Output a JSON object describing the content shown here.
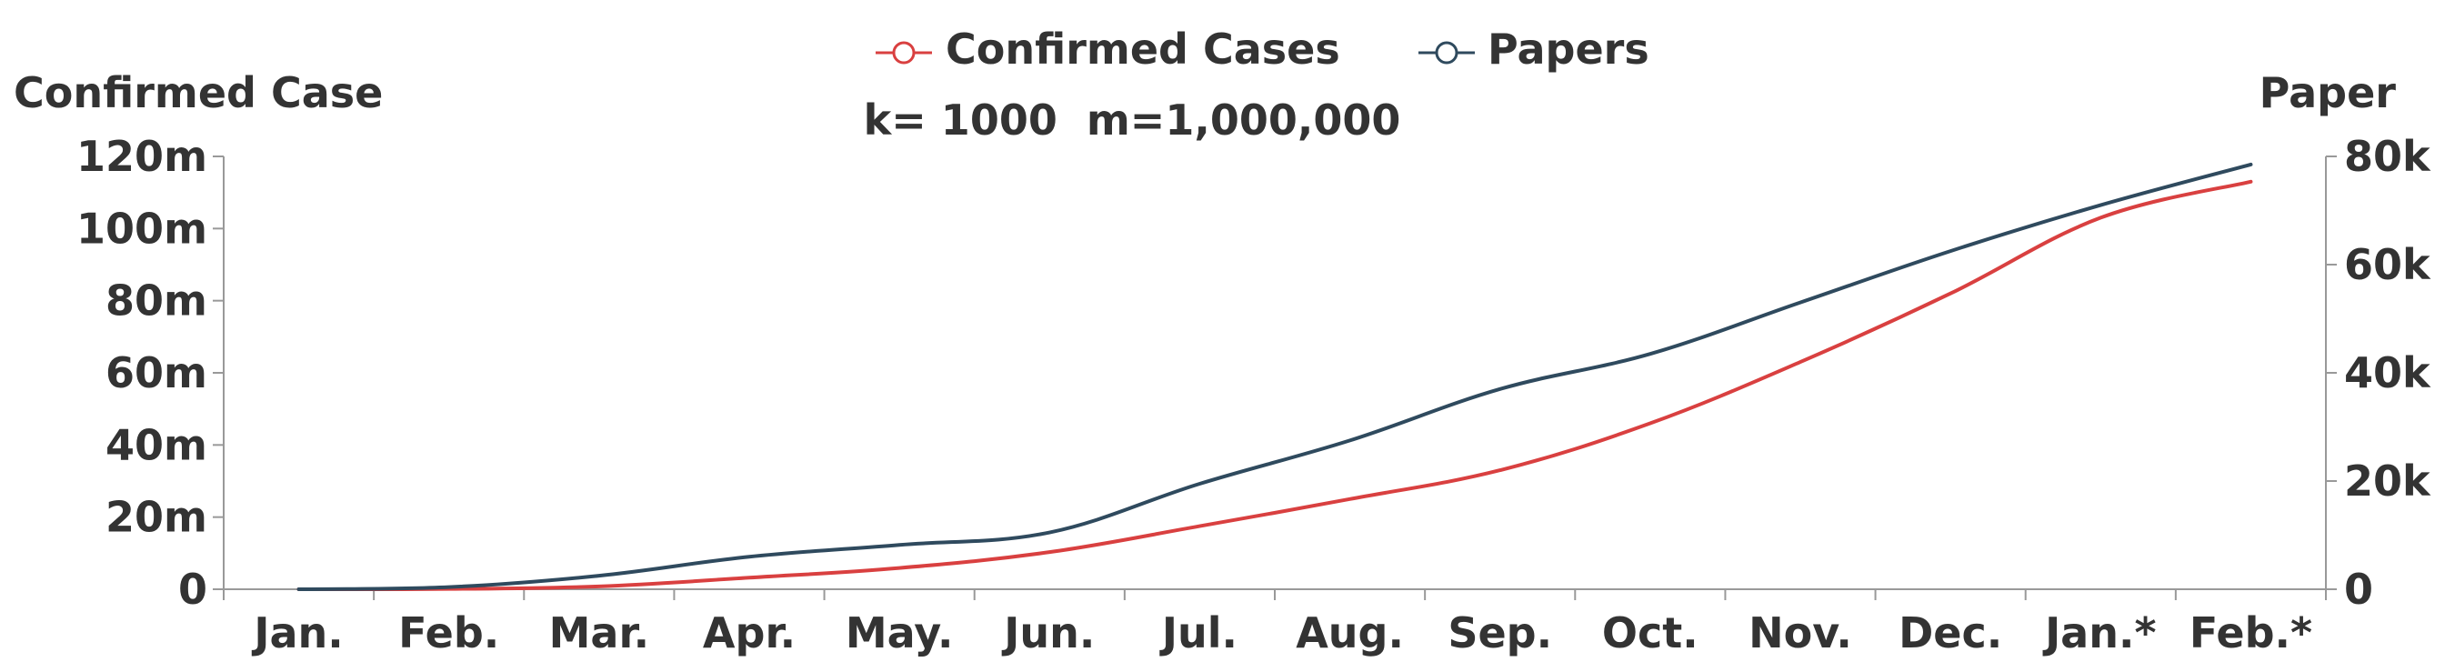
{
  "chart_data": {
    "type": "line",
    "subtitle": "k= 1000  m=1,000,000",
    "ylabel_left": "Confirmed Case",
    "ylabel_right": "Paper",
    "categories": [
      "Jan.",
      "Feb.",
      "Mar.",
      "Apr.",
      "May.",
      "Jun.",
      "Jul.",
      "Aug.",
      "Sep.",
      "Oct.",
      "Nov.",
      "Dec.",
      "Jan.*",
      "Feb.*"
    ],
    "y_left": {
      "min": 0,
      "max": 120000000,
      "ticks": [
        0,
        20000000,
        40000000,
        60000000,
        80000000,
        100000000,
        120000000
      ],
      "tick_labels": [
        "0",
        "20m",
        "40m",
        "60m",
        "80m",
        "100m",
        "120m"
      ]
    },
    "y_right": {
      "min": 0,
      "max": 80000,
      "ticks": [
        0,
        20000,
        40000,
        60000,
        80000
      ],
      "tick_labels": [
        "0",
        "20k",
        "40k",
        "60k",
        "80k"
      ]
    },
    "legend_position": "top-center",
    "grid": false,
    "series": [
      {
        "name": "Confirmed Cases",
        "axis": "left",
        "color": "#d94040",
        "values": [
          10000,
          80000,
          800000,
          3200000,
          5900000,
          10300000,
          17500000,
          25000000,
          33000000,
          46000000,
          63000000,
          82000000,
          103000000,
          113000000
        ]
      },
      {
        "name": "Papers",
        "axis": "right",
        "color": "#2f4a5e",
        "values": [
          0,
          400,
          2500,
          6000,
          8200,
          10500,
          19500,
          27500,
          37000,
          43500,
          53000,
          62500,
          71000,
          78500
        ]
      }
    ]
  }
}
